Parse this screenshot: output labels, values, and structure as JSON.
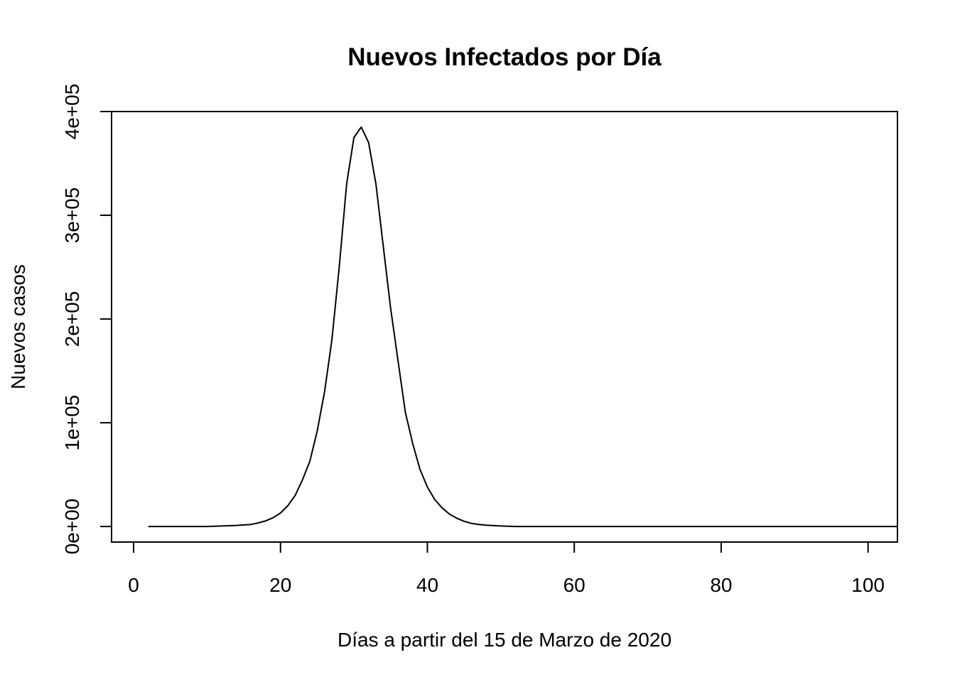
{
  "chart_data": {
    "type": "line",
    "title": "Nuevos Infectados por Día",
    "xlabel": "Días a partir del 15 de Marzo de 2020",
    "ylabel": "Nuevos casos",
    "xlim": [
      -3,
      104
    ],
    "ylim": [
      -15000,
      400000
    ],
    "x_ticks": [
      0,
      20,
      40,
      60,
      80,
      100
    ],
    "x_tick_labels": [
      "0",
      "20",
      "40",
      "60",
      "80",
      "100"
    ],
    "y_ticks": [
      0,
      100000,
      200000,
      300000,
      400000
    ],
    "y_tick_labels": [
      "0e+00",
      "1e+05",
      "2e+05",
      "3e+05",
      "4e+05"
    ],
    "grid": false,
    "legend": "none",
    "line_color": "#000000",
    "series": [
      {
        "x": [
          2,
          10,
          12,
          14,
          16,
          17,
          18,
          19,
          20,
          21,
          22,
          23,
          24,
          25,
          26,
          27,
          28,
          29,
          30,
          31,
          32,
          33,
          34,
          35,
          36,
          37,
          38,
          39,
          40,
          41,
          42,
          43,
          44,
          45,
          46,
          47,
          48,
          50,
          52,
          55,
          60,
          70,
          80,
          90,
          100,
          104
        ],
        "y": [
          0,
          0,
          500,
          1000,
          2000,
          3500,
          5500,
          8500,
          13000,
          20000,
          30000,
          45000,
          63000,
          92000,
          130000,
          180000,
          250000,
          330000,
          375000,
          385000,
          370000,
          330000,
          270000,
          210000,
          160000,
          110000,
          80000,
          55000,
          38000,
          26000,
          18000,
          12000,
          8000,
          5000,
          3000,
          2000,
          1200,
          500,
          0,
          0,
          0,
          0,
          0,
          0,
          0,
          0
        ]
      }
    ]
  }
}
